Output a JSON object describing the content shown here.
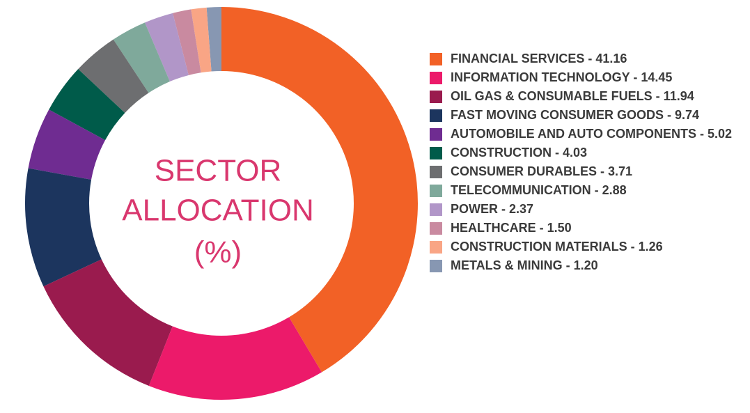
{
  "chart_data": {
    "type": "donut",
    "title": [
      "SECTOR",
      "ALLOCATION",
      "(%)"
    ],
    "categories": [
      "FINANCIAL SERVICES - 41.16",
      "INFORMATION TECHNOLOGY - 14.45",
      "OIL GAS & CONSUMABLE FUELS - 11.94",
      "FAST MOVING CONSUMER GOODS - 9.74",
      "AUTOMOBILE AND AUTO COMPONENTS - 5.02",
      "CONSTRUCTION - 4.03",
      "CONSUMER DURABLES - 3.71",
      "TELECOMMUNICATION - 2.88",
      "POWER - 2.37",
      "HEALTHCARE - 1.50",
      "CONSTRUCTION MATERIALS - 1.26",
      "METALS & MINING - 1.20"
    ],
    "values": [
      41.16,
      14.45,
      11.94,
      9.74,
      5.02,
      4.03,
      3.71,
      2.88,
      2.37,
      1.5,
      1.26,
      1.2
    ],
    "colors": [
      "#f26126",
      "#ec1a6a",
      "#9a1b4e",
      "#1c355e",
      "#6f2c91",
      "#005b4a",
      "#6d6e70",
      "#7fa99b",
      "#b196c8",
      "#c98aa0",
      "#f9a585",
      "#8797b2"
    ]
  }
}
